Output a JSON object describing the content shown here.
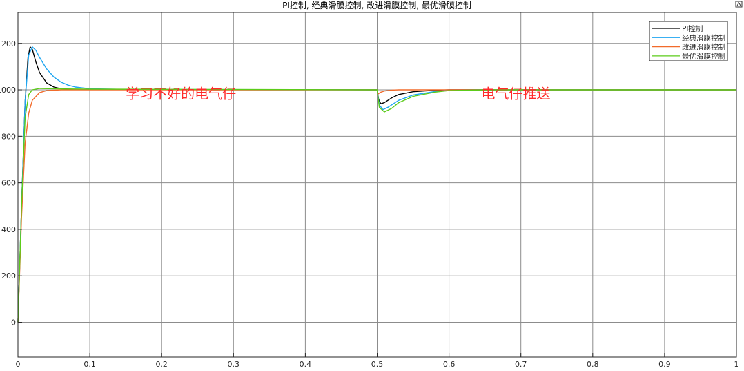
{
  "chart_data": {
    "type": "line",
    "title": "PI控制, 经典滑膜控制, 改进滑膜控制, 最优滑膜控制",
    "xlabel": "",
    "ylabel": "",
    "xlim": [
      0,
      1
    ],
    "ylim": [
      -150,
      1333
    ],
    "xticks": [
      0,
      0.1,
      0.2,
      0.3,
      0.4,
      0.5,
      0.6,
      0.7,
      0.8,
      0.9,
      1
    ],
    "xtick_labels": [
      "0",
      "0.1",
      "0.2",
      "0.3",
      "0.4",
      "0.5",
      "0.6",
      "0.7",
      "0.8",
      "0.9",
      "1"
    ],
    "yticks": [
      0,
      200,
      400,
      600,
      800,
      1000,
      1200
    ],
    "ytick_labels": [
      "0",
      "200",
      "400",
      "600",
      "800",
      "1000",
      "1200"
    ],
    "grid": true,
    "legend_placement": "top-right",
    "series": [
      {
        "name": "PI控制",
        "color": "#000000",
        "points": [
          [
            0,
            0
          ],
          [
            0.005,
            500
          ],
          [
            0.01,
            950
          ],
          [
            0.014,
            1140
          ],
          [
            0.017,
            1185
          ],
          [
            0.02,
            1175
          ],
          [
            0.025,
            1120
          ],
          [
            0.03,
            1075
          ],
          [
            0.04,
            1030
          ],
          [
            0.05,
            1012
          ],
          [
            0.06,
            1005
          ],
          [
            0.08,
            1002
          ],
          [
            0.1,
            1001
          ],
          [
            0.5,
            1000
          ],
          [
            0.502,
            960
          ],
          [
            0.505,
            940
          ],
          [
            0.51,
            945
          ],
          [
            0.52,
            965
          ],
          [
            0.53,
            980
          ],
          [
            0.55,
            992
          ],
          [
            0.58,
            998
          ],
          [
            0.6,
            1000
          ],
          [
            1,
            1000
          ]
        ]
      },
      {
        "name": "经典滑膜控制",
        "color": "#1ea5f0",
        "points": [
          [
            0,
            0
          ],
          [
            0.005,
            500
          ],
          [
            0.01,
            950
          ],
          [
            0.015,
            1150
          ],
          [
            0.02,
            1185
          ],
          [
            0.025,
            1170
          ],
          [
            0.03,
            1140
          ],
          [
            0.04,
            1090
          ],
          [
            0.05,
            1055
          ],
          [
            0.06,
            1033
          ],
          [
            0.07,
            1020
          ],
          [
            0.08,
            1012
          ],
          [
            0.1,
            1005
          ],
          [
            0.15,
            1002
          ],
          [
            0.5,
            1000
          ],
          [
            0.503,
            935
          ],
          [
            0.508,
            915
          ],
          [
            0.515,
            925
          ],
          [
            0.53,
            955
          ],
          [
            0.55,
            978
          ],
          [
            0.58,
            993
          ],
          [
            0.6,
            998
          ],
          [
            0.65,
            1000
          ],
          [
            1,
            1000
          ]
        ]
      },
      {
        "name": "改进滑膜控制",
        "color": "#f26b2b",
        "points": [
          [
            0,
            0
          ],
          [
            0.005,
            450
          ],
          [
            0.01,
            770
          ],
          [
            0.015,
            900
          ],
          [
            0.02,
            955
          ],
          [
            0.03,
            988
          ],
          [
            0.04,
            997
          ],
          [
            0.06,
            1000
          ],
          [
            0.5,
            1000
          ],
          [
            0.501,
            982
          ],
          [
            0.505,
            990
          ],
          [
            0.51,
            995
          ],
          [
            0.52,
            999
          ],
          [
            0.53,
            1000
          ],
          [
            1,
            1000
          ]
        ]
      },
      {
        "name": "最优滑膜控制",
        "color": "#5ccc1a",
        "points": [
          [
            0,
            0
          ],
          [
            0.005,
            500
          ],
          [
            0.01,
            880
          ],
          [
            0.015,
            980
          ],
          [
            0.02,
            1000
          ],
          [
            0.03,
            1006
          ],
          [
            0.06,
            1004
          ],
          [
            0.1,
            1003
          ],
          [
            0.5,
            1000
          ],
          [
            0.503,
            925
          ],
          [
            0.51,
            905
          ],
          [
            0.52,
            920
          ],
          [
            0.53,
            945
          ],
          [
            0.55,
            972
          ],
          [
            0.58,
            990
          ],
          [
            0.6,
            997
          ],
          [
            0.65,
            1000
          ],
          [
            1,
            1000
          ]
        ]
      }
    ],
    "annotations": [
      {
        "text": "学习不好的电气仔",
        "x": 0.15,
        "y": 990
      },
      {
        "text": "电气仔推送",
        "x": 0.645,
        "y": 990
      }
    ]
  }
}
